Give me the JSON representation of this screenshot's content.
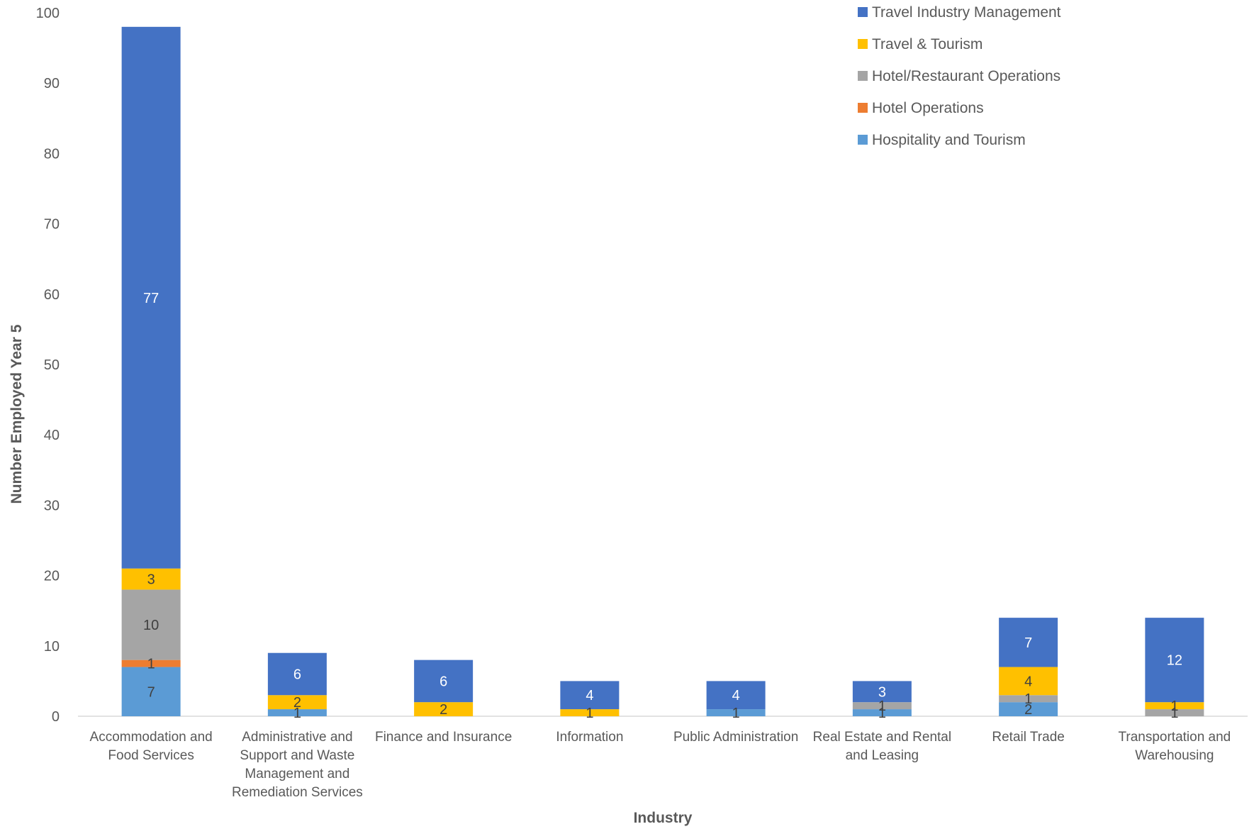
{
  "chart_data": {
    "type": "bar",
    "stacked": true,
    "title": "",
    "xlabel": "Industry",
    "ylabel": "Number Employed Year 5",
    "ylim": [
      0,
      100
    ],
    "yticks": [
      0,
      10,
      20,
      30,
      40,
      50,
      60,
      70,
      80,
      90,
      100
    ],
    "grid": false,
    "legend_position": "top-right",
    "categories": [
      "Accommodation and Food Services",
      "Administrative and Support and Waste Management and Remediation Services",
      "Finance and Insurance",
      "Information",
      "Public Administration",
      "Real Estate and Rental and Leasing",
      "Retail Trade",
      "Transportation and Warehousing"
    ],
    "category_label_lines": [
      [
        "Accommodation and",
        "Food Services"
      ],
      [
        "Administrative and",
        "Support and Waste",
        "Management and",
        "Remediation Services"
      ],
      [
        "Finance and Insurance"
      ],
      [
        "Information"
      ],
      [
        "Public Administration"
      ],
      [
        "Real Estate and Rental",
        "and Leasing"
      ],
      [
        "Retail Trade"
      ],
      [
        "Transportation and",
        "Warehousing"
      ]
    ],
    "series": [
      {
        "name": "Hospitality and Tourism",
        "color": "#5b9bd5",
        "values": [
          7,
          1,
          0,
          0,
          1,
          1,
          2,
          0
        ]
      },
      {
        "name": "Hotel Operations",
        "color": "#ed7d31",
        "values": [
          1,
          0,
          0,
          0,
          0,
          0,
          0,
          0
        ]
      },
      {
        "name": "Hotel/Restaurant Operations",
        "color": "#a5a5a5",
        "values": [
          10,
          0,
          0,
          0,
          0,
          1,
          1,
          1
        ]
      },
      {
        "name": "Travel & Tourism",
        "color": "#ffc000",
        "values": [
          3,
          2,
          2,
          1,
          0,
          0,
          4,
          1
        ]
      },
      {
        "name": "Travel Industry Management",
        "color": "#4472c4",
        "values": [
          77,
          6,
          6,
          4,
          4,
          3,
          7,
          12
        ]
      }
    ]
  }
}
